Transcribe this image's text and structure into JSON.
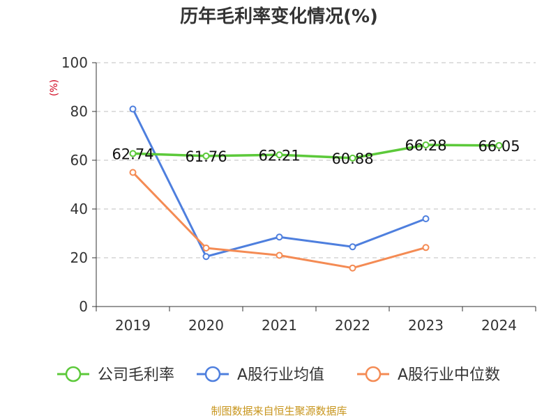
{
  "chart_data": {
    "type": "line",
    "title": "历年毛利率变化情况(%)",
    "unit_label": "(%)",
    "categories": [
      "2019",
      "2020",
      "2021",
      "2022",
      "2023",
      "2024"
    ],
    "ylim": [
      0,
      100
    ],
    "yticks": [
      0,
      20,
      40,
      60,
      80,
      100
    ],
    "grid": true,
    "legend_position": "bottom",
    "series": [
      {
        "name": "公司毛利率",
        "color": "#5cc93a",
        "values": [
          62.74,
          61.76,
          62.21,
          60.88,
          66.28,
          66.05
        ],
        "labels": [
          "62.74",
          "61.76",
          "62.21",
          "60.88",
          "66.28",
          "66.05"
        ]
      },
      {
        "name": "A股行业均值",
        "color": "#4e7fde",
        "values": [
          81.0,
          20.5,
          28.5,
          24.5,
          36.0,
          null
        ]
      },
      {
        "name": "A股行业中位数",
        "color": "#f48b54",
        "values": [
          55.0,
          24.0,
          21.0,
          15.8,
          24.2,
          null
        ]
      }
    ]
  },
  "source": "制图数据来自恒生聚源数据库"
}
